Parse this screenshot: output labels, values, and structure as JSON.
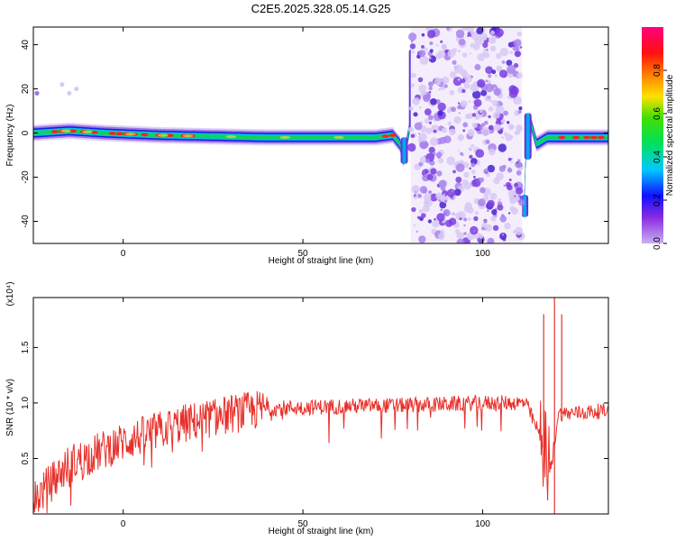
{
  "title": "C2E5.2025.328.05.14.G25",
  "chart_data": [
    {
      "type": "heatmap",
      "xlabel": "Height of straight line (km)",
      "ylabel": "Frequency (Hz)",
      "xlim": [
        -25,
        135
      ],
      "ylim": [
        -50,
        48
      ],
      "xticks": [
        0,
        50,
        100
      ],
      "yticks": [
        -40,
        -20,
        0,
        20,
        40
      ],
      "colorbar": {
        "label": "Normalized spectral amplitude",
        "range": [
          0,
          1
        ],
        "ticks": [
          "0.0",
          "0.2",
          "0.4",
          "0.6",
          "0.8"
        ]
      },
      "ridge": [
        {
          "x": -25,
          "y": 0
        },
        {
          "x": -15,
          "y": 1
        },
        {
          "x": -5,
          "y": 0
        },
        {
          "x": 10,
          "y": -1
        },
        {
          "x": 40,
          "y": -2
        },
        {
          "x": 70,
          "y": -2
        },
        {
          "x": 75,
          "y": -1
        },
        {
          "x": 77,
          "y": -5
        },
        {
          "x": 78,
          "y": -12
        },
        {
          "x": 80,
          "y": 5
        },
        {
          "x": 80.5,
          "y": 35
        },
        {
          "x": 111.5,
          "y": -35
        },
        {
          "x": 112,
          "y": -10
        },
        {
          "x": 113,
          "y": 7
        },
        {
          "x": 115,
          "y": -5
        },
        {
          "x": 118,
          "y": -2
        },
        {
          "x": 135,
          "y": -2
        }
      ],
      "noise_region": [
        80,
        111
      ]
    },
    {
      "type": "line",
      "xlabel": "Height of straight line (km)",
      "ylabel": "SNR (10 * v/v)",
      "yscale_note": "(x10⁴)",
      "xlim": [
        -25,
        135
      ],
      "ylim": [
        0.0,
        1.95
      ],
      "xticks": [
        0,
        50,
        100
      ],
      "yticks": [
        "0.5",
        "1.0",
        "1.5"
      ],
      "color": "#e8302a",
      "trend": [
        {
          "x": -25,
          "y": 0.12
        },
        {
          "x": -15,
          "y": 0.45
        },
        {
          "x": 0,
          "y": 0.65
        },
        {
          "x": 15,
          "y": 0.8
        },
        {
          "x": 30,
          "y": 0.9
        },
        {
          "x": 40,
          "y": 0.95
        },
        {
          "x": 60,
          "y": 0.97
        },
        {
          "x": 80,
          "y": 0.98
        },
        {
          "x": 100,
          "y": 1.0
        },
        {
          "x": 112,
          "y": 1.0
        },
        {
          "x": 116,
          "y": 0.7
        },
        {
          "x": 119,
          "y": 0.4
        },
        {
          "x": 121,
          "y": 0.9
        },
        {
          "x": 135,
          "y": 0.93
        }
      ],
      "spikes": [
        {
          "x": 117,
          "y": 1.8
        },
        {
          "x": 120,
          "y": 1.95
        },
        {
          "x": 122,
          "y": 1.8
        },
        {
          "x": 120,
          "y": 0.0
        }
      ]
    }
  ]
}
